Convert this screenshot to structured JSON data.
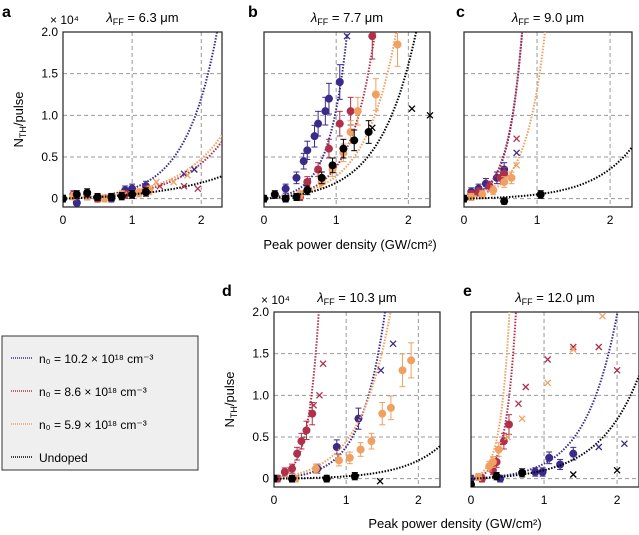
{
  "colors": {
    "n102": "#3b2a8a",
    "n86": "#b0304a",
    "n59": "#f0a060",
    "undoped": "#000000"
  },
  "shared": {
    "xlabel": "Peak power density (GW/cm²)",
    "ylabel": "N_TH/pulse",
    "y_multiplier": "× 10⁴",
    "xticks": [
      "0",
      "1",
      "2"
    ],
    "yticks": [
      "0",
      "0.5",
      "1.0",
      "1.5",
      "2.0"
    ],
    "xlim": [
      0,
      2.3
    ],
    "ylim": [
      -0.1,
      2.0
    ]
  },
  "legend": {
    "entries": [
      {
        "key": "n102",
        "label": "n₀ = 10.2 × 10¹⁸ cm⁻³"
      },
      {
        "key": "n86",
        "label": "n₀ = 8.6 × 10¹⁸ cm⁻³"
      },
      {
        "key": "n59",
        "label": "n₀ = 5.9 × 10¹⁸ cm⁻³"
      },
      {
        "key": "undoped",
        "label": "Undoped"
      }
    ]
  },
  "chart_data": [
    {
      "type": "scatter",
      "panel": "a",
      "title": "λ_FF = 6.3 μm",
      "xlabel": "Peak power density (GW/cm²)",
      "ylabel": "N_TH/pulse (×10⁴)",
      "xlim": [
        0,
        2.3
      ],
      "ylim": [
        -0.1,
        2.0
      ],
      "grid": true,
      "series": [
        {
          "name": "n102",
          "points": [
            [
              0,
              0
            ],
            [
              0.2,
              -0.05
            ],
            [
              0.35,
              0.03
            ],
            [
              0.5,
              0
            ],
            [
              0.7,
              0
            ],
            [
              0.9,
              0.1
            ],
            [
              1.0,
              0.12
            ],
            [
              1.2,
              0.15
            ]
          ],
          "crosses": [
            [
              1.75,
              0.3
            ],
            [
              1.9,
              0.35
            ]
          ],
          "fit_a": 0.015,
          "fit_b": 2.2
        },
        {
          "name": "n86",
          "points": [
            [
              0,
              0
            ],
            [
              0.15,
              0.05
            ],
            [
              0.35,
              0.05
            ],
            [
              0.5,
              0
            ],
            [
              0.7,
              0.02
            ],
            [
              0.9,
              0.05
            ],
            [
              1.2,
              0.1
            ]
          ],
          "crosses": [
            [
              1.4,
              0.15
            ],
            [
              1.75,
              0.15
            ],
            [
              1.95,
              0.12
            ]
          ],
          "fit_a": 0.02,
          "fit_b": 1.55
        },
        {
          "name": "n59",
          "points": [
            [
              0,
              0
            ],
            [
              0.15,
              0.03
            ],
            [
              0.35,
              0.03
            ],
            [
              0.6,
              0
            ],
            [
              0.85,
              0.05
            ],
            [
              1.1,
              0.07
            ],
            [
              1.25,
              0.1
            ]
          ],
          "crosses": [
            [
              1.35,
              0.2
            ],
            [
              1.6,
              0.2
            ],
            [
              1.8,
              0.28
            ]
          ],
          "fit_a": 0.025,
          "fit_b": 1.5
        },
        {
          "name": "undoped",
          "points": [
            [
              0,
              0
            ],
            [
              0.2,
              0.05
            ],
            [
              0.35,
              0.07
            ],
            [
              0.5,
              0.02
            ],
            [
              0.7,
              0.02
            ],
            [
              0.85,
              0.03
            ],
            [
              1.0,
              0.05
            ],
            [
              1.2,
              0.08
            ]
          ],
          "crosses": [],
          "fit_a": 0.03,
          "fit_b": 1.0
        }
      ]
    },
    {
      "type": "scatter",
      "panel": "b",
      "title": "λ_FF = 7.7 μm",
      "xlabel": "Peak power density (GW/cm²)",
      "ylabel": "N_TH/pulse (×10⁴)",
      "xlim": [
        0,
        2.3
      ],
      "ylim": [
        -0.1,
        2.0
      ],
      "grid": true,
      "series": [
        {
          "name": "n102",
          "points": [
            [
              0.3,
              0.12
            ],
            [
              0.45,
              0.25
            ],
            [
              0.55,
              0.45
            ],
            [
              0.6,
              0.58
            ],
            [
              0.7,
              0.75
            ],
            [
              0.75,
              0.9
            ],
            [
              0.85,
              1.05
            ],
            [
              0.9,
              1.2
            ],
            [
              1.05,
              1.4
            ]
          ],
          "crosses": [
            [
              1.15,
              1.95
            ]
          ],
          "fit_a": 0.02,
          "fit_b": 4.0
        },
        {
          "name": "n86",
          "points": [
            [
              0.5,
              0.02
            ],
            [
              0.6,
              0.2
            ],
            [
              0.75,
              0.35
            ],
            [
              0.9,
              0.6
            ],
            [
              1.05,
              0.9
            ],
            [
              1.2,
              1.05
            ],
            [
              1.5,
              1.95
            ]
          ],
          "crosses": [],
          "fit_a": 0.02,
          "fit_b": 3.0
        },
        {
          "name": "n59",
          "points": [
            [
              0.5,
              0.05
            ],
            [
              0.8,
              0.2
            ],
            [
              0.95,
              0.35
            ],
            [
              1.1,
              0.55
            ],
            [
              1.2,
              0.8
            ],
            [
              1.3,
              1.05
            ],
            [
              1.55,
              1.25
            ],
            [
              1.85,
              1.85
            ]
          ],
          "crosses": [],
          "fit_a": 0.03,
          "fit_b": 2.3
        },
        {
          "name": "undoped",
          "points": [
            [
              0,
              0
            ],
            [
              0.15,
              0.05
            ],
            [
              0.3,
              0
            ],
            [
              0.45,
              0.02
            ],
            [
              0.6,
              0.1
            ],
            [
              0.8,
              0.25
            ],
            [
              0.95,
              0.4
            ],
            [
              1.1,
              0.6
            ],
            [
              1.25,
              0.7
            ],
            [
              1.45,
              0.8
            ]
          ],
          "crosses": [
            [
              1.5,
              0.85
            ],
            [
              2.05,
              1.08
            ],
            [
              2.3,
              1.0
            ]
          ],
          "fit_a": 0.03,
          "fit_b": 2.0
        }
      ]
    },
    {
      "type": "scatter",
      "panel": "c",
      "title": "λ_FF = 9.0 μm",
      "xlabel": "Peak power density (GW/cm²)",
      "ylabel": "N_TH/pulse (×10⁴)",
      "xlim": [
        0,
        2.3
      ],
      "ylim": [
        -0.1,
        2.0
      ],
      "grid": true,
      "series": [
        {
          "name": "n102",
          "points": [
            [
              0.1,
              0.08
            ],
            [
              0.2,
              0.12
            ],
            [
              0.3,
              0.18
            ],
            [
              0.45,
              0.25
            ],
            [
              0.55,
              0.35
            ]
          ],
          "crosses": [
            [
              0.72,
              0.55
            ]
          ],
          "fit_a": 0.03,
          "fit_b": 5.3
        },
        {
          "name": "n86",
          "points": [
            [
              0.1,
              0.05
            ],
            [
              0.2,
              0.08
            ],
            [
              0.35,
              0.15
            ],
            [
              0.5,
              0.25
            ],
            [
              0.55,
              0.3
            ]
          ],
          "crosses": [
            [
              0.72,
              0.72
            ]
          ],
          "fit_a": 0.035,
          "fit_b": 5.1
        },
        {
          "name": "n59",
          "points": [
            [
              0.1,
              0.02
            ],
            [
              0.25,
              0.05
            ],
            [
              0.4,
              0.1
            ],
            [
              0.55,
              0.2
            ],
            [
              0.65,
              0.25
            ]
          ],
          "crosses": [
            [
              0.72,
              0.4
            ]
          ],
          "fit_a": 0.03,
          "fit_b": 3.8
        },
        {
          "name": "undoped",
          "points": [
            [
              0,
              0
            ],
            [
              0.55,
              -0.03
            ],
            [
              1.05,
              0.05
            ]
          ],
          "crosses": [],
          "fit_a": 0.01,
          "fit_b": 1.8
        }
      ]
    },
    {
      "type": "scatter",
      "panel": "d",
      "title": "λ_FF = 10.3 μm",
      "xlabel": "Peak power density (GW/cm²)",
      "ylabel": "N_TH/pulse (×10⁴)",
      "xlim": [
        0,
        2.3
      ],
      "ylim": [
        -0.1,
        2.0
      ],
      "grid": true,
      "series": [
        {
          "name": "n102",
          "points": [
            [
              0.6,
              0.12
            ],
            [
              0.87,
              0.38
            ],
            [
              1.17,
              0.72
            ]
          ],
          "crosses": [
            [
              1.48,
              1.3
            ],
            [
              1.65,
              1.62
            ]
          ],
          "fit_a": 0.02,
          "fit_b": 3.0
        },
        {
          "name": "n86",
          "points": [
            [
              0.05,
              0
            ],
            [
              0.15,
              0.08
            ],
            [
              0.25,
              0.12
            ],
            [
              0.32,
              0.3
            ],
            [
              0.38,
              0.45
            ],
            [
              0.45,
              0.58
            ],
            [
              0.53,
              0.78
            ]
          ],
          "crosses": [
            [
              0.55,
              0.88
            ],
            [
              0.63,
              1.0
            ],
            [
              0.68,
              1.38
            ]
          ],
          "fit_a": 0.03,
          "fit_b": 6.8
        },
        {
          "name": "n59",
          "points": [
            [
              0.3,
              0
            ],
            [
              0.58,
              0.12
            ],
            [
              0.9,
              0.22
            ],
            [
              1.05,
              0.25
            ],
            [
              1.2,
              0.35
            ],
            [
              1.35,
              0.45
            ],
            [
              1.5,
              0.78
            ],
            [
              1.62,
              0.85
            ],
            [
              1.78,
              1.3
            ],
            [
              1.9,
              1.42
            ]
          ],
          "crosses": [],
          "fit_a": 0.05,
          "fit_b": 2.3
        },
        {
          "name": "undoped",
          "points": [
            [
              0,
              0
            ],
            [
              0.25,
              0
            ],
            [
              0.73,
              0
            ],
            [
              1.12,
              0.03
            ]
          ],
          "crosses": [
            [
              1.47,
              -0.03
            ]
          ],
          "fit_a": 0.005,
          "fit_b": 1.9
        }
      ]
    },
    {
      "type": "scatter",
      "panel": "e",
      "title": "λ_FF = 12.0 μm",
      "xlabel": "Peak power density (GW/cm²)",
      "ylabel": "N_TH/pulse (×10⁴)",
      "xlim": [
        0,
        2.3
      ],
      "ylim": [
        -0.1,
        2.0
      ],
      "grid": true,
      "series": [
        {
          "name": "n102",
          "points": [
            [
              0,
              0
            ],
            [
              0.4,
              0
            ],
            [
              0.88,
              0.08
            ],
            [
              0.98,
              0.08
            ],
            [
              1.07,
              0.25
            ],
            [
              1.22,
              0.17
            ],
            [
              1.4,
              0.3
            ]
          ],
          "crosses": [
            [
              1.75,
              0.38
            ],
            [
              2.1,
              0.42
            ]
          ],
          "fit_a": 0.02,
          "fit_b": 2.3
        },
        {
          "name": "n86",
          "points": [
            [
              0.15,
              0
            ],
            [
              0.3,
              0.1
            ],
            [
              0.35,
              0.2
            ],
            [
              0.45,
              0.45
            ],
            [
              0.52,
              0.65
            ]
          ],
          "crosses": [
            [
              0.65,
              0.9
            ],
            [
              0.75,
              1.1
            ],
            [
              1.05,
              1.43
            ],
            [
              1.4,
              1.58
            ],
            [
              1.75,
              1.58
            ],
            [
              2.0,
              1.3
            ]
          ],
          "fit_a": 0.02,
          "fit_b": 7.5
        },
        {
          "name": "n59",
          "points": [
            [
              0.1,
              0.02
            ],
            [
              0.25,
              0.15
            ],
            [
              0.3,
              0.2
            ],
            [
              0.38,
              0.35
            ]
          ],
          "crosses": [
            [
              0.5,
              0.5
            ],
            [
              0.7,
              0.72
            ],
            [
              1.05,
              1.15
            ],
            [
              1.4,
              1.55
            ],
            [
              1.8,
              1.95
            ]
          ],
          "fit_a": 0.03,
          "fit_b": 8.0
        },
        {
          "name": "undoped",
          "points": [
            [
              0,
              -0.07
            ],
            [
              0.35,
              0.03
            ],
            [
              0.7,
              0.07
            ]
          ],
          "crosses": [
            [
              1.4,
              0.05
            ],
            [
              2.0,
              0.1
            ]
          ],
          "fit_a": 0.02,
          "fit_b": 1.8
        }
      ]
    }
  ]
}
